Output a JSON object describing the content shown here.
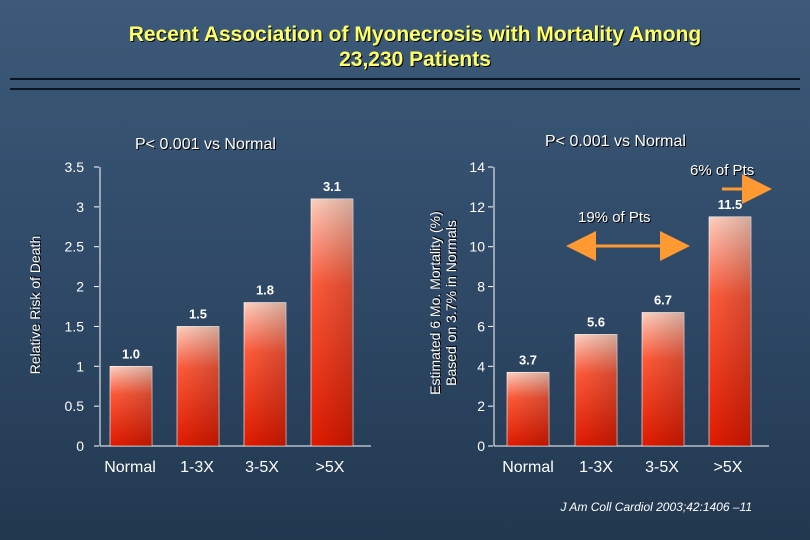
{
  "title": {
    "line1": "Recent Association of Myonecrosis with Mortality Among",
    "line2": "23,230 Patients"
  },
  "citation": "J Am Coll Cardiol 2003;42:1406 –11",
  "annotations": {
    "pts_19": "19% of Pts",
    "pts_6": "6% of Pts"
  },
  "colors": {
    "bar_top": "#ffd0c0",
    "bar_mid": "#ff5a3a",
    "bar_bottom": "#e01a00",
    "axis": "#ffffff",
    "title": "#ffff66",
    "arrow": "#ff9a33",
    "background": "#2e4866"
  },
  "chart_data": [
    {
      "type": "bar",
      "title": "P< 0.001 vs Normal",
      "ylabel": "Relative Risk of Death",
      "xlabel": "",
      "categories": [
        "Normal",
        "1-3X",
        "3-5X",
        ">5X"
      ],
      "values": [
        1.0,
        1.5,
        1.8,
        3.1
      ],
      "value_labels": [
        "1.0",
        "1.5",
        "1.8",
        "3.1"
      ],
      "ylim": [
        0,
        3.5
      ],
      "yticks": [
        "0",
        "0.5",
        "1",
        "1.5",
        "2",
        "2.5",
        "3",
        "3.5"
      ],
      "grid": false
    },
    {
      "type": "bar",
      "title": "P< 0.001 vs Normal",
      "ylabel": [
        "Estimated 6 Mo. Mortality (%)",
        "Based on 3.7% in Normals"
      ],
      "xlabel": "",
      "categories": [
        "Normal",
        "1-3X",
        "3-5X",
        ">5X"
      ],
      "values": [
        3.7,
        5.6,
        6.7,
        11.5
      ],
      "value_labels": [
        "3.7",
        "5.6",
        "6.7",
        "11.5"
      ],
      "ylim": [
        0,
        14
      ],
      "yticks": [
        "0",
        "2",
        "4",
        "6",
        "8",
        "10",
        "12",
        "14"
      ],
      "grid": false
    }
  ]
}
